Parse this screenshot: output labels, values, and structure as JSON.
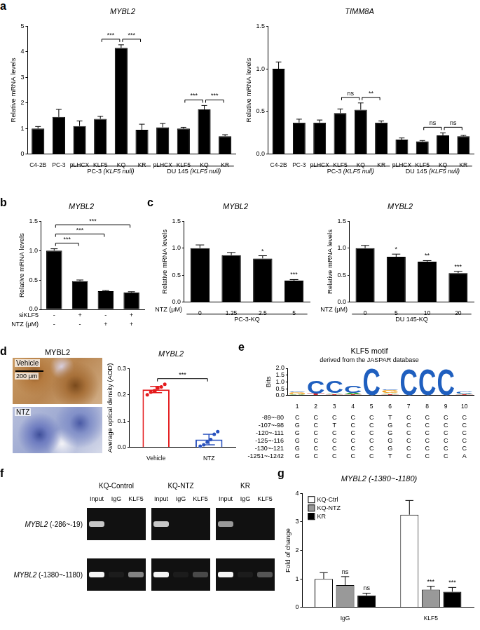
{
  "chart_data": [
    {
      "panel_label": "a",
      "type": "bar",
      "title": "MYBL2",
      "ylabel": "Relative mRNA levels",
      "categories": [
        "C4-2B",
        "PC-3",
        "pLHCX",
        "KLF5",
        "KQ",
        "KR",
        "pLHCX",
        "KLF5",
        "KQ",
        "KR"
      ],
      "values": [
        1.0,
        1.45,
        1.1,
        1.38,
        4.15,
        0.95,
        1.05,
        1.0,
        1.75,
        0.7
      ],
      "errors": [
        0.08,
        0.3,
        0.2,
        0.1,
        0.12,
        0.22,
        0.15,
        0.05,
        0.15,
        0.06
      ],
      "color": "#000000",
      "ylim": [
        0,
        5
      ],
      "yticks": [
        0,
        1,
        2,
        3,
        4,
        5
      ],
      "grid": false,
      "groups": [
        {
          "label": "PC-3 (KLF5 null)",
          "from": 2,
          "to": 5
        },
        {
          "label": "DU 145 (KLF5 null)",
          "from": 6,
          "to": 9
        }
      ],
      "brackets": [
        {
          "from": 3,
          "to": 4,
          "label": "***"
        },
        {
          "from": 4,
          "to": 5,
          "label": "***"
        },
        {
          "from": 7,
          "to": 8,
          "label": "***"
        },
        {
          "from": 8,
          "to": 9,
          "label": "***"
        }
      ]
    },
    {
      "type": "bar",
      "title": "TIMM8A",
      "ylabel": "Relative mRNA levels",
      "categories": [
        "C4-2B",
        "PC-3",
        "pLHCX",
        "KLF5",
        "KQ",
        "KR",
        "pLHCX",
        "KLF5",
        "KQ",
        "KR"
      ],
      "values": [
        1.0,
        0.37,
        0.37,
        0.48,
        0.52,
        0.37,
        0.17,
        0.15,
        0.22,
        0.21
      ],
      "errors": [
        0.08,
        0.04,
        0.03,
        0.05,
        0.08,
        0.02,
        0.02,
        0.01,
        0.03,
        0.01
      ],
      "color": "#000000",
      "ylim": [
        0,
        1.5
      ],
      "yticks": [
        {
          "value": 0,
          "label": "0.0"
        },
        0.5,
        {
          "value": 1,
          "label": "1.0"
        },
        1.5
      ],
      "grid": false,
      "groups": [
        {
          "label": "PC-3 (KLF5 null)",
          "from": 2,
          "to": 5
        },
        {
          "label": "DU 145 (KLF5 null)",
          "from": 6,
          "to": 9
        }
      ],
      "brackets": [
        {
          "from": 3,
          "to": 4,
          "label": "ns"
        },
        {
          "from": 4,
          "to": 5,
          "label": "**"
        },
        {
          "from": 7,
          "to": 8,
          "label": "ns"
        },
        {
          "from": 8,
          "to": 9,
          "label": "ns"
        }
      ]
    },
    {
      "panel_label": "b",
      "type": "bar",
      "title": "MYBL2",
      "ylabel": "Relative mRNA levels",
      "categories": [
        null,
        null,
        null,
        null
      ],
      "tick_labels": "y",
      "values": [
        1.0,
        0.48,
        0.31,
        0.29
      ],
      "errors": [
        0.03,
        0.02,
        0.01,
        0.01
      ],
      "color": "#000000",
      "ylim": [
        0,
        1.5
      ],
      "yticks": [
        {
          "value": 0,
          "label": "0.0"
        },
        0.5,
        {
          "value": 1,
          "label": "1.0"
        },
        1.5
      ],
      "grid": false,
      "conditions": [
        {
          "label": "siKLF5",
          "values": [
            "-",
            "+",
            "-",
            "+"
          ]
        },
        {
          "label": "NTZ (μM)",
          "values": [
            "-",
            "-",
            "+",
            "+"
          ]
        }
      ],
      "brackets": [
        {
          "from": 0,
          "to": 1,
          "label": "***"
        },
        {
          "from": 0,
          "to": 2,
          "label": "***"
        },
        {
          "from": 0,
          "to": 3,
          "label": "***"
        }
      ]
    },
    {
      "panel_label": "c",
      "type": "bar",
      "title": "MYBL2",
      "ylabel": "Relative mRNA levels",
      "xlabel": "NTZ (μM)",
      "categories": [
        "0",
        "1.25",
        "2.5",
        "5"
      ],
      "values": [
        1.0,
        0.87,
        0.81,
        0.4
      ],
      "errors": [
        0.06,
        0.05,
        0.05,
        0.02
      ],
      "significance": [
        null,
        null,
        "*",
        "***"
      ],
      "color": "#000000",
      "ylim": [
        0,
        1.5
      ],
      "yticks": [
        {
          "value": 0,
          "label": "0.0"
        },
        0.5,
        {
          "value": 1,
          "label": "1.0"
        },
        1.5
      ],
      "grid": false,
      "groups": [
        {
          "label": "PC-3-KQ",
          "from": 0,
          "to": 3
        }
      ]
    },
    {
      "type": "bar",
      "title": "MYBL2",
      "ylabel": "Relative mRNA levels",
      "xlabel": "NTZ (μM)",
      "categories": [
        "0",
        "5",
        "10",
        "20"
      ],
      "values": [
        1.0,
        0.84,
        0.75,
        0.54
      ],
      "errors": [
        0.05,
        0.05,
        0.02,
        0.03
      ],
      "significance": [
        null,
        "*",
        "**",
        "***"
      ],
      "color": "#000000",
      "ylim": [
        0,
        1.5
      ],
      "yticks": [
        {
          "value": 0,
          "label": "0.0"
        },
        0.5,
        {
          "value": 1,
          "label": "1.0"
        },
        1.5
      ],
      "grid": false,
      "groups": [
        {
          "label": "DU 145-KQ",
          "from": 0,
          "to": 3
        }
      ]
    },
    {
      "type": "bar",
      "title": "MYBL2",
      "ylabel": "Average optical density (AOD)",
      "categories": [
        "Vehicle",
        "NTZ"
      ],
      "values": [
        0.22,
        0.03
      ],
      "errors": [
        0.012,
        0.02
      ],
      "points": [
        [
          0.2,
          0.21,
          0.215,
          0.225,
          0.23,
          0.24
        ],
        [
          0.005,
          0.01,
          0.02,
          0.03,
          0.05,
          0.06
        ]
      ],
      "colors": [
        "#e41a1c",
        "#2a52be"
      ],
      "ylim": [
        0,
        0.3
      ],
      "yticks": [
        {
          "value": 0,
          "label": "0.0"
        },
        0.1,
        0.2,
        0.3
      ],
      "grid": false,
      "brackets": [
        {
          "from": 0,
          "to": 1,
          "label": "***"
        }
      ]
    },
    {
      "panel_label": "e",
      "type": "bar",
      "title": "KLF5 motif",
      "subtitle": "derived from the JASPAR database",
      "ylabel": "Bits",
      "categories": [
        "1",
        "2",
        "3",
        "4",
        "5",
        "6",
        "7",
        "8",
        "9",
        "10"
      ],
      "stacked": true,
      "marker": "letter",
      "series": [
        {
          "name": "T",
          "color": "#d62728",
          "values": [
            0.05,
            0.12,
            0.1,
            0.08,
            0,
            0.1,
            0,
            0,
            0,
            0.08
          ]
        },
        {
          "name": "A",
          "color": "#2ca02c",
          "values": [
            0.04,
            0,
            0.06,
            0.1,
            0,
            0.08,
            0,
            0,
            0,
            0.04
          ]
        },
        {
          "name": "G",
          "color": "#f0a020",
          "values": [
            0.15,
            0,
            0,
            0,
            0,
            0.22,
            0,
            0,
            0,
            0
          ]
        },
        {
          "name": "C",
          "color": "#1f5fbf",
          "values": [
            0.04,
            0.95,
            0.9,
            0.55,
            1.98,
            0.05,
            1.95,
            1.95,
            1.9,
            0.15
          ]
        }
      ],
      "ylim": [
        0,
        2
      ],
      "yticks": [
        {
          "value": 0,
          "label": "0.0"
        },
        0.5,
        {
          "value": 1,
          "label": "1.0"
        },
        1.5,
        {
          "value": 2,
          "label": "2.0"
        }
      ],
      "grid": false,
      "sites": [
        {
          "label": "-89~-80",
          "sequence": "CCCCCTCCCC"
        },
        {
          "label": "-107~-98",
          "sequence": "GCTCCGCCCC"
        },
        {
          "label": "-120~-111",
          "sequence": "GCCCCGCCCC"
        },
        {
          "label": "-125~-116",
          "sequence": "GCCCCGCCCC"
        },
        {
          "label": "-130~-121",
          "sequence": "GCCCCGCCCC"
        },
        {
          "label": "-1251~-1242",
          "sequence": "GCCCCTCCCA"
        }
      ]
    },
    {
      "panel_label": "g",
      "type": "bar",
      "title": "MYBL2 (-1380~-1180)",
      "ylabel": "Fold of change",
      "categories": [
        "IgG",
        "KLF5"
      ],
      "legend": "top-left",
      "series": [
        {
          "name": "KQ-Ctrl",
          "color": "#ffffff",
          "values": [
            1.0,
            3.25
          ],
          "errors": [
            0.22,
            0.5
          ],
          "significance": [
            null,
            null
          ]
        },
        {
          "name": "KQ-NTZ",
          "color": "#999999",
          "values": [
            0.78,
            0.62
          ],
          "errors": [
            0.3,
            0.12
          ],
          "significance": [
            "ns",
            "***"
          ]
        },
        {
          "name": "KR",
          "color": "#000000",
          "values": [
            0.42,
            0.55
          ],
          "errors": [
            0.08,
            0.15
          ],
          "significance": [
            "ns",
            "***"
          ]
        }
      ],
      "ylim": [
        0,
        4
      ],
      "yticks": [
        0,
        1,
        2,
        3,
        4
      ],
      "grid": false
    }
  ],
  "image_d": {
    "panel_label": "d",
    "title": "MYBL2",
    "panels": [
      "Vehicle",
      "NTZ"
    ],
    "scale_bar": "200 μm"
  },
  "gel_f": {
    "panel_label": "f",
    "groups": [
      "KQ-Control",
      "KQ-NTZ",
      "KR"
    ],
    "lanes": [
      "Input",
      "IgG",
      "KLF5"
    ],
    "rows": [
      {
        "label": "MYBL2 (-286~-19)",
        "bands": [
          0.8,
          0,
          0,
          0.8,
          0,
          0,
          0.6,
          0,
          0
        ]
      },
      {
        "label": "MYBL2 (-1380~-1180)",
        "bands": [
          1,
          0.05,
          0.5,
          1,
          0.05,
          0.25,
          1,
          0.05,
          0.3
        ]
      }
    ]
  }
}
